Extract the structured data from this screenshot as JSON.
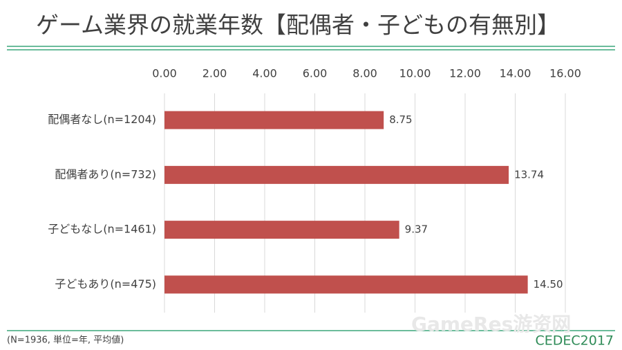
{
  "chart_data": {
    "type": "bar",
    "orientation": "horizontal",
    "title": "ゲーム業界の就業年数【配偶者・子どもの有無別】",
    "categories": [
      "配偶者なし(n=1204)",
      "配偶者あり(n=732)",
      "子どもなし(n=1461)",
      "子どもあり(n=475)"
    ],
    "values": [
      8.75,
      13.74,
      9.37,
      14.5
    ],
    "value_labels": [
      "8.75",
      "13.74",
      "9.37",
      "14.50"
    ],
    "color": "#c0504d",
    "xlim": [
      0,
      16
    ],
    "xticks": [
      {
        "value": 0,
        "label": "0.00"
      },
      {
        "value": 2,
        "label": "2.00"
      },
      {
        "value": 4,
        "label": "4.00"
      },
      {
        "value": 6,
        "label": "6.00"
      },
      {
        "value": 8,
        "label": "8.00"
      },
      {
        "value": 10,
        "label": "10.00"
      },
      {
        "value": 12,
        "label": "12.00"
      },
      {
        "value": 14,
        "label": "14.00"
      },
      {
        "value": 16,
        "label": "16.00"
      }
    ],
    "grid": true
  },
  "footnote": "(N=1936, 単位=年, 平均値)",
  "logo": "CEDEC2017",
  "watermark": "GameRes游资网"
}
